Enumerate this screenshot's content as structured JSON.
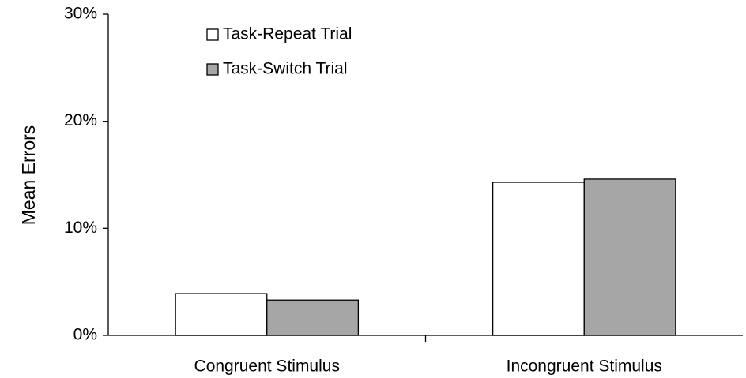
{
  "chart_data": {
    "type": "bar",
    "y_label": "Mean Errors",
    "categories": [
      "Congruent Stimulus",
      "Incongruent Stimulus"
    ],
    "series": [
      {
        "name": "Task-Repeat Trial",
        "color": "#ffffff",
        "values": [
          3.9,
          14.3
        ]
      },
      {
        "name": "Task-Switch Trial",
        "color": "#a6a6a6",
        "values": [
          3.3,
          14.6
        ]
      }
    ],
    "ylim": [
      0,
      30
    ],
    "yticks": [
      {
        "value": 0,
        "label": "0%"
      },
      {
        "value": 10,
        "label": "10%"
      },
      {
        "value": 20,
        "label": "20%"
      },
      {
        "value": 30,
        "label": "30%"
      }
    ],
    "grid": false,
    "legend": "top-left"
  }
}
